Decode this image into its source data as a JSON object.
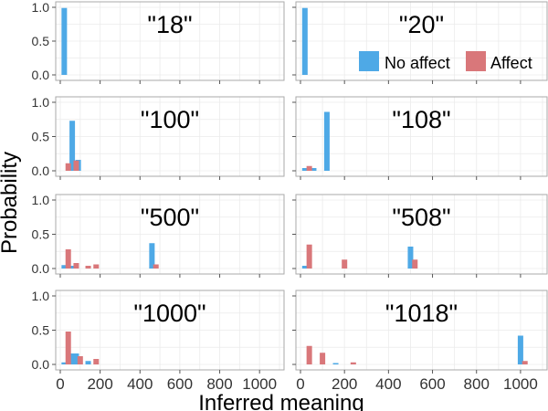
{
  "figure": {
    "ylabel": "Probability",
    "xlabel": "Inferred meaning"
  },
  "colors": {
    "no_affect": "#4ea9e6",
    "affect": "#d9777a",
    "panel_border": "#aaaaaa",
    "grid": "#ebebeb"
  },
  "legend": {
    "items": [
      "No affect",
      "Affect"
    ],
    "placement": "bottom-right of panel \"20\""
  },
  "chart_data": [
    {
      "type": "bar",
      "title": "\"18\"",
      "xlim": [
        0,
        1100
      ],
      "ylim": [
        0,
        1
      ],
      "yticks": [
        0,
        0.5,
        1.0
      ],
      "ytick_labels": [
        "0.0",
        "0.5",
        "1.0"
      ],
      "xticks": [
        0,
        200,
        400,
        600,
        800,
        1000
      ],
      "xtick_labels": [],
      "series": [
        {
          "name": "No affect",
          "points": [
            [
              20,
              0.99
            ]
          ]
        },
        {
          "name": "Affect",
          "points": []
        }
      ]
    },
    {
      "type": "bar",
      "title": "\"20\"",
      "xlim": [
        0,
        1100
      ],
      "ylim": [
        0,
        1
      ],
      "yticks": [
        0,
        0.5,
        1.0
      ],
      "ytick_labels": [],
      "xticks": [
        0,
        200,
        400,
        600,
        800,
        1000
      ],
      "xtick_labels": [],
      "series": [
        {
          "name": "No affect",
          "points": [
            [
              20,
              0.99
            ]
          ]
        },
        {
          "name": "Affect",
          "points": []
        }
      ]
    },
    {
      "type": "bar",
      "title": "\"100\"",
      "xlim": [
        0,
        1100
      ],
      "ylim": [
        0,
        1
      ],
      "yticks": [
        0,
        0.5,
        1.0
      ],
      "ytick_labels": [
        "0.0",
        "0.5",
        "1.0"
      ],
      "xticks": [
        0,
        200,
        400,
        600,
        800,
        1000
      ],
      "xtick_labels": [],
      "series": [
        {
          "name": "No affect",
          "points": [
            [
              60,
              0.73
            ],
            [
              90,
              0.16
            ]
          ]
        },
        {
          "name": "Affect",
          "points": [
            [
              40,
              0.11
            ],
            [
              80,
              0.15
            ]
          ]
        }
      ]
    },
    {
      "type": "bar",
      "title": "\"108\"",
      "xlim": [
        0,
        1100
      ],
      "ylim": [
        0,
        1
      ],
      "yticks": [
        0,
        0.5,
        1.0
      ],
      "ytick_labels": [],
      "xticks": [
        0,
        200,
        400,
        600,
        800,
        1000
      ],
      "xtick_labels": [],
      "series": [
        {
          "name": "No affect",
          "points": [
            [
              20,
              0.04
            ],
            [
              60,
              0.04
            ],
            [
              120,
              0.86
            ]
          ]
        },
        {
          "name": "Affect",
          "points": [
            [
              40,
              0.07
            ]
          ]
        }
      ]
    },
    {
      "type": "bar",
      "title": "\"500\"",
      "xlim": [
        0,
        1100
      ],
      "ylim": [
        0,
        1
      ],
      "yticks": [
        0,
        0.5,
        1.0
      ],
      "ytick_labels": [
        "0.0",
        "0.5",
        "1.0"
      ],
      "xticks": [
        0,
        200,
        400,
        600,
        800,
        1000
      ],
      "xtick_labels": [],
      "series": [
        {
          "name": "No affect",
          "points": [
            [
              20,
              0.05
            ],
            [
              60,
              0.04
            ],
            [
              460,
              0.37
            ]
          ]
        },
        {
          "name": "Affect",
          "points": [
            [
              40,
              0.28
            ],
            [
              80,
              0.08
            ],
            [
              140,
              0.04
            ],
            [
              180,
              0.06
            ],
            [
              480,
              0.06
            ]
          ]
        }
      ]
    },
    {
      "type": "bar",
      "title": "\"508\"",
      "xlim": [
        0,
        1100
      ],
      "ylim": [
        0,
        1
      ],
      "yticks": [
        0,
        0.5,
        1.0
      ],
      "ytick_labels": [],
      "xticks": [
        0,
        200,
        400,
        600,
        800,
        1000
      ],
      "xtick_labels": [],
      "series": [
        {
          "name": "No affect",
          "points": [
            [
              20,
              0.04
            ],
            [
              500,
              0.32
            ]
          ]
        },
        {
          "name": "Affect",
          "points": [
            [
              40,
              0.35
            ],
            [
              200,
              0.13
            ],
            [
              520,
              0.13
            ]
          ]
        }
      ]
    },
    {
      "type": "bar",
      "title": "\"1000\"",
      "xlim": [
        0,
        1100
      ],
      "ylim": [
        0,
        1
      ],
      "yticks": [
        0,
        0.5,
        1.0
      ],
      "ytick_labels": [
        "0.0",
        "0.5",
        "1.0"
      ],
      "xticks": [
        0,
        200,
        400,
        600,
        800,
        1000
      ],
      "xtick_labels": [
        "0",
        "200",
        "400",
        "600",
        "800",
        "1000"
      ],
      "series": [
        {
          "name": "No affect",
          "points": [
            [
              20,
              0.03
            ],
            [
              60,
              0.16
            ],
            [
              80,
              0.16
            ],
            [
              140,
              0.05
            ]
          ]
        },
        {
          "name": "Affect",
          "points": [
            [
              40,
              0.48
            ],
            [
              100,
              0.12
            ],
            [
              180,
              0.08
            ]
          ]
        }
      ]
    },
    {
      "type": "bar",
      "title": "\"1018\"",
      "xlim": [
        0,
        1100
      ],
      "ylim": [
        0,
        1
      ],
      "yticks": [
        0,
        0.5,
        1.0
      ],
      "ytick_labels": [],
      "xticks": [
        0,
        200,
        400,
        600,
        800,
        1000
      ],
      "xtick_labels": [
        "0",
        "200",
        "400",
        "600",
        "800",
        "1000"
      ],
      "series": [
        {
          "name": "No affect",
          "points": [
            [
              160,
              0.02
            ],
            [
              1000,
              0.42
            ]
          ]
        },
        {
          "name": "Affect",
          "points": [
            [
              40,
              0.27
            ],
            [
              100,
              0.17
            ],
            [
              240,
              0.03
            ],
            [
              1020,
              0.05
            ]
          ]
        }
      ]
    }
  ]
}
